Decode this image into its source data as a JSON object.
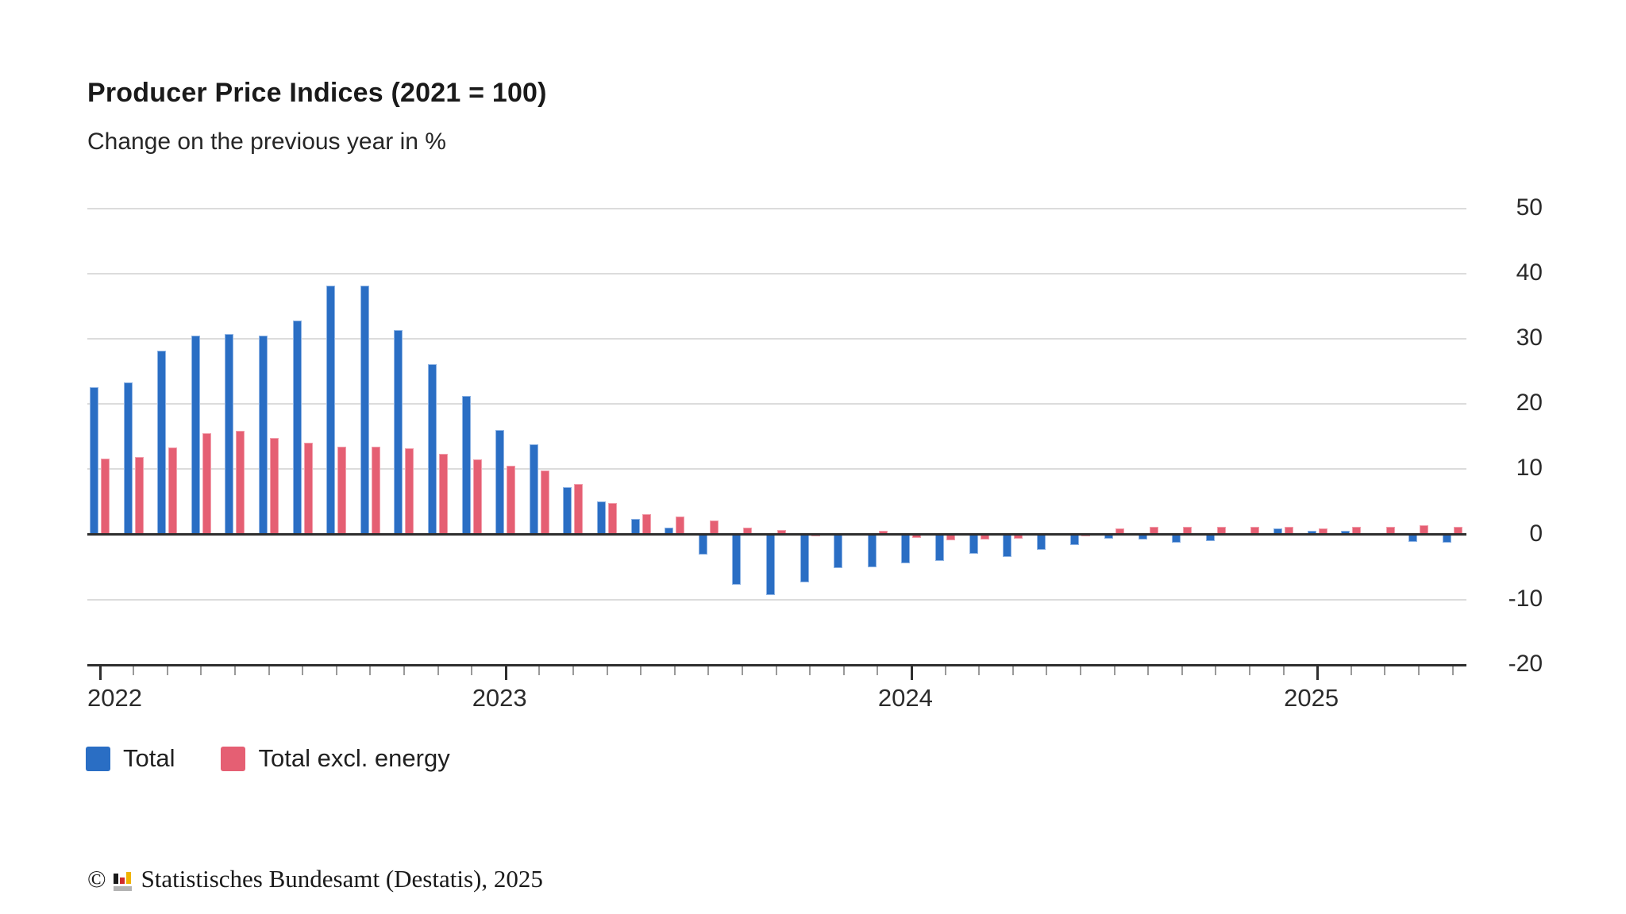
{
  "title": "Producer Price Indices (2021 = 100)",
  "subtitle": "Change on the previous year in %",
  "legend": [
    {
      "label": "Total",
      "color": "#2a6ec4"
    },
    {
      "label": "Total excl. energy",
      "color": "#e55f73"
    }
  ],
  "footer": {
    "copyright": "©",
    "text": "Statistisches Bundesamt (Destatis), 2025"
  },
  "colors": {
    "total": "#2a6ec4",
    "total_excl_energy": "#e55f73",
    "gridline": "#dcdcdc",
    "axis": "#2e2e2e"
  },
  "chart_data": {
    "type": "bar",
    "title": "Producer Price Indices (2021 = 100)",
    "subtitle": "Change on the previous year in %",
    "ylabel": "Change on the previous year in %",
    "ylim": [
      -20,
      50
    ],
    "y_ticks": [
      50,
      40,
      30,
      20,
      10,
      0,
      -10,
      -20
    ],
    "grid": "horizontal",
    "legend_position": "bottom-left",
    "year_labels": [
      {
        "label": "2022",
        "month_index": 0
      },
      {
        "label": "2023",
        "month_index": 12
      },
      {
        "label": "2024",
        "month_index": 24
      },
      {
        "label": "2025",
        "month_index": 36
      }
    ],
    "categories": [
      "2022-01",
      "2022-02",
      "2022-03",
      "2022-04",
      "2022-05",
      "2022-06",
      "2022-07",
      "2022-08",
      "2022-09",
      "2022-10",
      "2022-11",
      "2022-12",
      "2023-01",
      "2023-02",
      "2023-03",
      "2023-04",
      "2023-05",
      "2023-06",
      "2023-07",
      "2023-08",
      "2023-09",
      "2023-10",
      "2023-11",
      "2023-12",
      "2024-01",
      "2024-02",
      "2024-03",
      "2024-04",
      "2024-05",
      "2024-06",
      "2024-07",
      "2024-08",
      "2024-09",
      "2024-10",
      "2024-11",
      "2024-12",
      "2025-01",
      "2025-02",
      "2025-03",
      "2025-04",
      "2025-05"
    ],
    "series": [
      {
        "name": "Total",
        "color": "#2a6ec4",
        "values": [
          22.6,
          23.3,
          28.2,
          30.5,
          30.8,
          30.5,
          32.8,
          38.2,
          38.2,
          31.4,
          26.1,
          21.3,
          16.0,
          13.8,
          7.3,
          5.0,
          2.4,
          1.0,
          -3.1,
          -7.7,
          -9.3,
          -7.4,
          -5.2,
          -5.1,
          -4.4,
          -4.1,
          -3.0,
          -3.5,
          -2.4,
          -1.7,
          -0.7,
          -0.8,
          -1.3,
          -1.0,
          0.0,
          0.9,
          0.5,
          0.5,
          -0.2,
          -1.2,
          -1.3
        ]
      },
      {
        "name": "Total excl. energy",
        "color": "#e55f73",
        "values": [
          11.6,
          11.9,
          13.3,
          15.5,
          15.9,
          14.8,
          14.1,
          13.5,
          13.5,
          13.2,
          12.4,
          11.5,
          10.5,
          9.8,
          7.7,
          4.8,
          3.1,
          2.8,
          2.1,
          1.0,
          0.7,
          -0.3,
          -0.2,
          0.5,
          -0.6,
          -0.9,
          -0.8,
          -0.7,
          0.0,
          -0.3,
          0.9,
          1.2,
          1.2,
          1.1,
          1.1,
          1.2,
          0.9,
          1.2,
          1.1,
          1.4,
          1.1
        ]
      }
    ]
  }
}
